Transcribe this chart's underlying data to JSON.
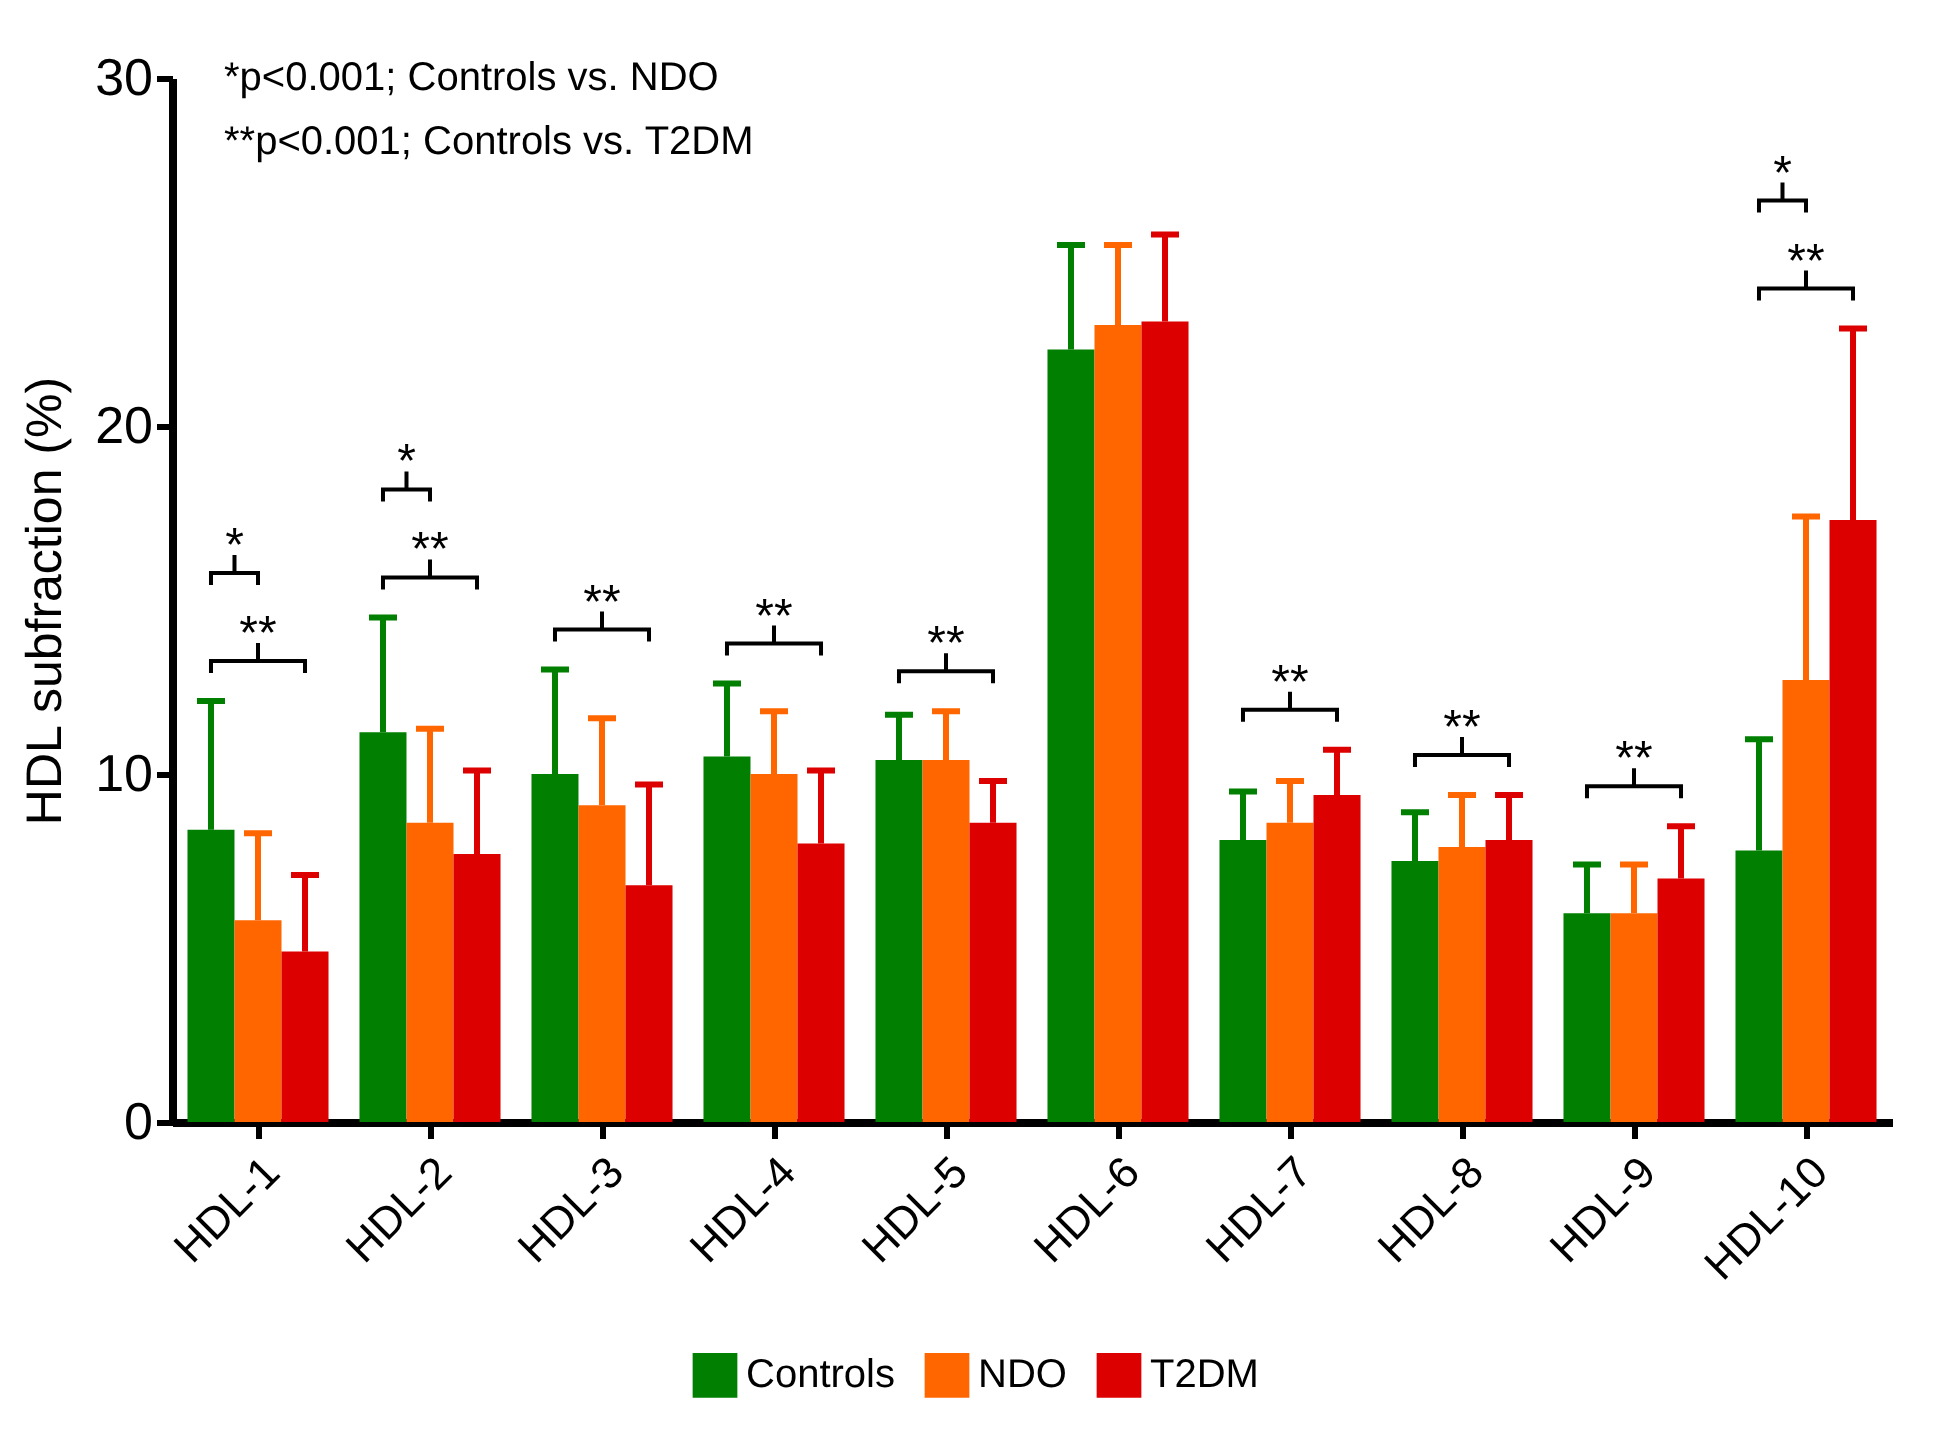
{
  "chart_data": {
    "type": "bar",
    "ylabel": "HDL subfraction (%)",
    "categories": [
      "HDL-1",
      "HDL-2",
      "HDL-3",
      "HDL-4",
      "HDL-5",
      "HDL-6",
      "HDL-7",
      "HDL-8",
      "HDL-9",
      "HDL-10"
    ],
    "series": [
      {
        "name": "Controls",
        "color": "#007f00",
        "values": [
          8.4,
          11.2,
          10.0,
          10.5,
          10.4,
          22.2,
          8.1,
          7.5,
          6.0,
          7.8
        ],
        "errors": [
          [
            8.4,
            12.1
          ],
          [
            11.2,
            14.5
          ],
          [
            10.0,
            13.0
          ],
          [
            10.5,
            12.6
          ],
          [
            10.4,
            11.7
          ],
          [
            22.2,
            25.2
          ],
          [
            8.1,
            9.5
          ],
          [
            7.5,
            8.9
          ],
          [
            6.0,
            7.4
          ],
          [
            7.8,
            11.0
          ]
        ]
      },
      {
        "name": "NDO",
        "color": "#ff6600",
        "values": [
          5.8,
          8.6,
          9.1,
          10.0,
          10.4,
          22.9,
          8.6,
          7.9,
          6.0,
          12.7
        ],
        "errors": [
          [
            5.8,
            8.3
          ],
          [
            8.6,
            11.3
          ],
          [
            9.1,
            11.6
          ],
          [
            10.0,
            11.8
          ],
          [
            10.4,
            11.8
          ],
          [
            22.9,
            25.2
          ],
          [
            8.6,
            9.8
          ],
          [
            7.9,
            9.4
          ],
          [
            6.0,
            7.4
          ],
          [
            12.7,
            17.4
          ]
        ]
      },
      {
        "name": "T2DM",
        "color": "#dd0000",
        "values": [
          4.9,
          7.7,
          6.8,
          8.0,
          8.6,
          23.0,
          9.4,
          8.1,
          7.0,
          17.3
        ],
        "errors": [
          [
            4.9,
            7.1
          ],
          [
            7.7,
            10.1
          ],
          [
            6.8,
            9.7
          ],
          [
            8.0,
            10.1
          ],
          [
            8.6,
            9.8
          ],
          [
            23.0,
            25.5
          ],
          [
            9.4,
            10.7
          ],
          [
            8.1,
            9.4
          ],
          [
            7.0,
            8.5
          ],
          [
            17.3,
            22.8
          ]
        ]
      }
    ],
    "ylim": [
      0,
      30
    ],
    "yticks": [
      0,
      10,
      20,
      30
    ],
    "grid": false,
    "legend": "bottom",
    "annotations": [
      "*p<0.001; Controls vs. NDO",
      "**p<0.001; Controls vs. T2DM",
      "*",
      "**",
      "*",
      "**",
      "**",
      "**",
      "**",
      "**",
      "**",
      "**",
      "*",
      "**"
    ]
  }
}
